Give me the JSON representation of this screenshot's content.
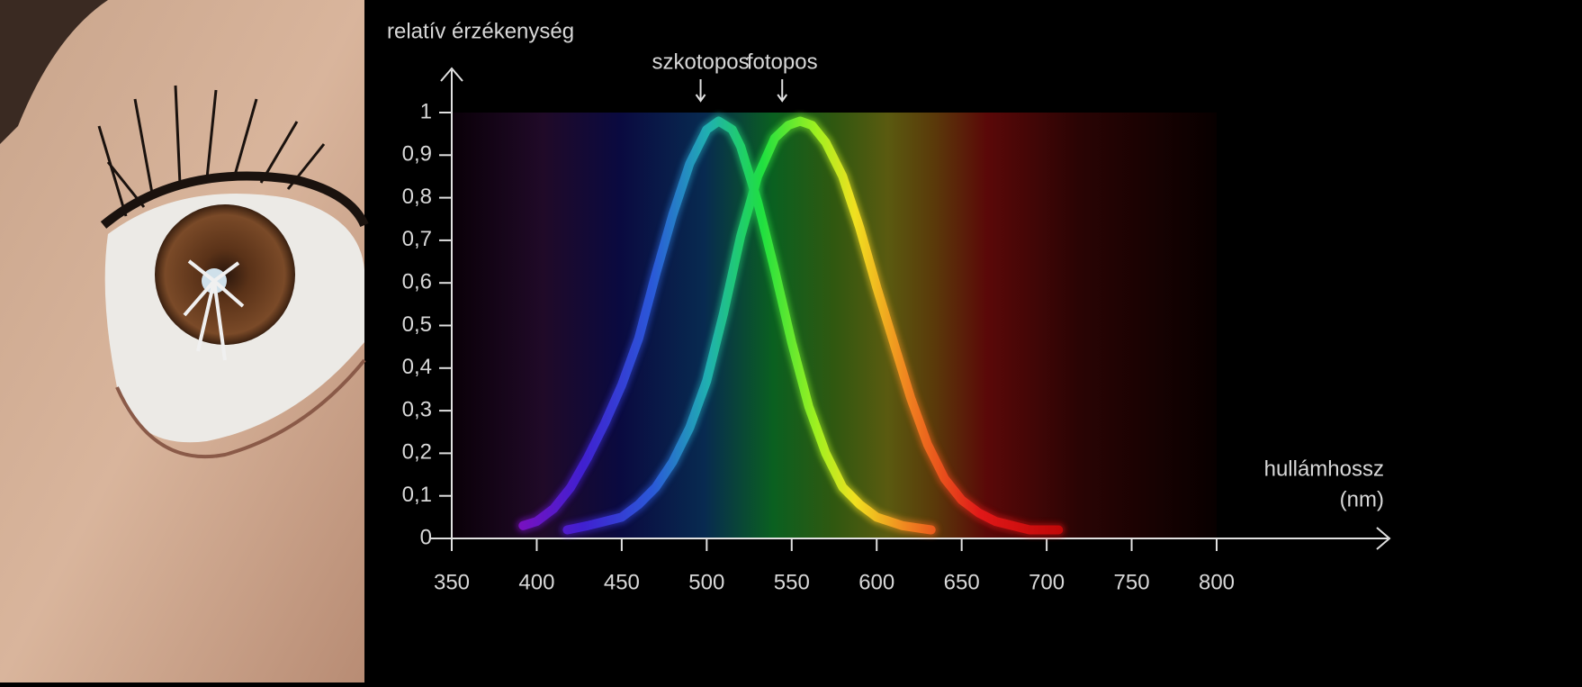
{
  "chart_data": {
    "type": "line",
    "y_label": "relatív érzékenység",
    "x_label": "hullámhossz",
    "x_unit": "(nm)",
    "xlim": [
      350,
      800
    ],
    "ylim": [
      0,
      1
    ],
    "xticks": [
      350,
      400,
      450,
      500,
      550,
      600,
      650,
      700,
      750,
      800
    ],
    "yticks": [
      0,
      {
        "value": 0.1,
        "label": "0,1"
      },
      {
        "value": 0.2,
        "label": "0,2"
      },
      {
        "value": 0.3,
        "label": "0,3"
      },
      {
        "value": 0.4,
        "label": "0,4"
      },
      {
        "value": 0.5,
        "label": "0,5"
      },
      {
        "value": 0.6,
        "label": "0,6"
      },
      {
        "value": 0.7,
        "label": "0,7"
      },
      {
        "value": 0.8,
        "label": "0,8"
      },
      {
        "value": 0.9,
        "label": "0,9"
      },
      1
    ],
    "series": [
      {
        "name": "szkotopos",
        "x": [
          392,
          400,
          410,
          420,
          430,
          440,
          450,
          460,
          470,
          480,
          490,
          500,
          507,
          515,
          520,
          530,
          540,
          550,
          560,
          570,
          580,
          590,
          600,
          615,
          632
        ],
        "values": [
          0.03,
          0.04,
          0.07,
          0.12,
          0.19,
          0.27,
          0.36,
          0.47,
          0.62,
          0.76,
          0.88,
          0.96,
          0.98,
          0.96,
          0.92,
          0.79,
          0.63,
          0.46,
          0.31,
          0.2,
          0.12,
          0.08,
          0.05,
          0.03,
          0.02
        ]
      },
      {
        "name": "fotopos",
        "x": [
          418,
          430,
          440,
          450,
          460,
          470,
          480,
          490,
          500,
          510,
          520,
          530,
          540,
          548,
          555,
          562,
          570,
          580,
          590,
          600,
          610,
          620,
          630,
          640,
          650,
          660,
          670,
          690,
          707
        ],
        "values": [
          0.02,
          0.03,
          0.04,
          0.05,
          0.08,
          0.12,
          0.18,
          0.26,
          0.37,
          0.53,
          0.71,
          0.85,
          0.94,
          0.97,
          0.98,
          0.97,
          0.93,
          0.85,
          0.73,
          0.59,
          0.46,
          0.33,
          0.22,
          0.14,
          0.09,
          0.06,
          0.04,
          0.02,
          0.02
        ]
      }
    ]
  }
}
